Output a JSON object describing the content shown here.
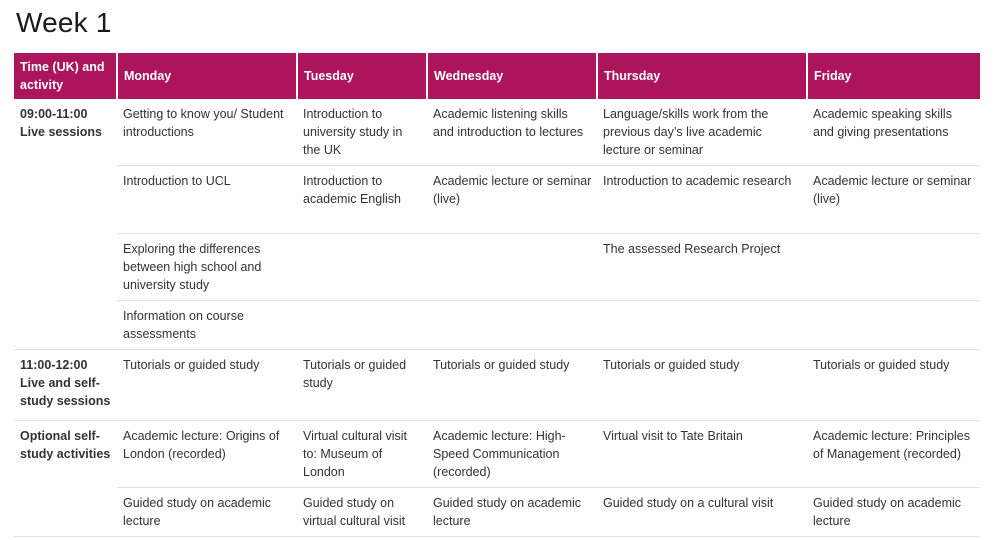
{
  "page": {
    "title": "Week 1"
  },
  "colors": {
    "header_bg": "#AC155C",
    "header_text": "#FFFFFF",
    "body_text": "#333333",
    "title_text": "#1A1A1A",
    "row_divider": "#E2E2E2"
  },
  "table": {
    "headers": [
      "Time (UK) and activity",
      "Monday",
      "Tuesday",
      "Wednesday",
      "Thursday",
      "Friday"
    ],
    "blocks": [
      {
        "time": "09:00-11:00",
        "activity": "Live sessions",
        "rows": [
          [
            "Getting to know you/ Student introductions",
            "Introduction to university study in the UK",
            "Academic listening skills and introduction to lectures",
            "Language/skills work from the previous day’s live academic lecture or seminar",
            "Academic speaking skills and giving presentations"
          ],
          [
            "Introduction to UCL",
            "Introduction to academic English",
            "Academic lecture or seminar (live)",
            "Introduction to academic research",
            "Academic lecture or seminar (live)"
          ],
          [
            "Exploring the differences between high school and university study",
            "",
            "",
            "The assessed Research Project",
            ""
          ],
          [
            "Information on course assessments",
            "",
            "",
            "",
            ""
          ]
        ]
      },
      {
        "time": "11:00-12:00",
        "activity": "Live and self-study sessions",
        "rows": [
          [
            "Tutorials or guided study",
            "Tutorials or guided study",
            "Tutorials or guided study",
            "Tutorials or guided study",
            "Tutorials or guided study"
          ]
        ]
      },
      {
        "time": "",
        "activity": "Optional self-study activities",
        "rows": [
          [
            "Academic lecture: Origins of London (recorded)",
            "Virtual cultural visit to: Museum of London",
            "Academic lecture: High-Speed Communication (recorded)",
            "Virtual visit to Tate Britain",
            "Academic lecture: Principles of Management (recorded)"
          ],
          [
            "Guided study on academic lecture",
            "Guided study on virtual cultural visit",
            "Guided study on academic lecture",
            "Guided study on a cultural visit",
            "Guided study on academic lecture"
          ]
        ]
      }
    ]
  }
}
